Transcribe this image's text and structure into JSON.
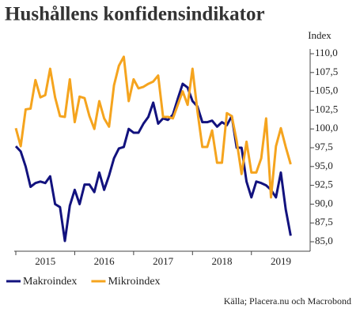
{
  "chart_data": {
    "type": "line",
    "title": "Hushållens konfidensindikator",
    "y_label": "Index",
    "source": "Källa; Placera.nu och Macrobond",
    "x": [
      2015,
      2015.083,
      2015.167,
      2015.25,
      2015.333,
      2015.417,
      2015.5,
      2015.583,
      2015.667,
      2015.75,
      2015.833,
      2015.917,
      2016,
      2016.083,
      2016.167,
      2016.25,
      2016.333,
      2016.417,
      2016.5,
      2016.583,
      2016.667,
      2016.75,
      2016.833,
      2016.917,
      2017,
      2017.083,
      2017.167,
      2017.25,
      2017.333,
      2017.417,
      2017.5,
      2017.583,
      2017.667,
      2017.75,
      2017.833,
      2017.917,
      2018,
      2018.083,
      2018.167,
      2018.25,
      2018.333,
      2018.417,
      2018.5,
      2018.583,
      2018.667,
      2018.75,
      2018.833,
      2018.917,
      2019,
      2019.083,
      2019.167,
      2019.25,
      2019.333,
      2019.417,
      2019.5,
      2019.583,
      2019.667
    ],
    "series": [
      {
        "name": "Makroindex",
        "color": "#12127e",
        "values": [
          97.7,
          97,
          95,
          92.3,
          92.8,
          93,
          92.8,
          93.7,
          90,
          89.6,
          85.1,
          89.8,
          91.9,
          90,
          92.6,
          92.6,
          91.6,
          94.2,
          91.9,
          93.8,
          96.1,
          97.4,
          97.6,
          100,
          99.5,
          99.5,
          100.7,
          101.6,
          103.5,
          100.7,
          101.4,
          101.2,
          101.9,
          104,
          106,
          105.5,
          103.7,
          103,
          100.9,
          100.9,
          101.1,
          100.3,
          100.9,
          100.5,
          101.7,
          97.5,
          97.5,
          93,
          90.9,
          93,
          92.8,
          92.5,
          91.9,
          90.9,
          94.2,
          89.3,
          85.8
        ]
      },
      {
        "name": "Mikroindex",
        "color": "#f5a41e",
        "values": [
          100.1,
          97.7,
          102.6,
          102.7,
          106.5,
          104.2,
          104.5,
          108,
          104.2,
          101.7,
          101.6,
          106.6,
          100.9,
          104.3,
          104.1,
          101.7,
          100,
          103.7,
          101.4,
          100.3,
          105.8,
          108.4,
          109.6,
          103.7,
          106.6,
          105.4,
          105.6,
          106,
          106.3,
          107.1,
          101.6,
          101.6,
          101.4,
          103.2,
          105,
          103.2,
          108,
          102.4,
          97.6,
          97.6,
          99.8,
          95.5,
          95.5,
          102.1,
          101.7,
          98.4,
          94,
          98.3,
          94.2,
          94.2,
          96.1,
          101.4,
          90.9,
          97.7,
          100.1,
          97.6,
          95.3
        ]
      }
    ],
    "xlim": [
      2015,
      2019.917
    ],
    "xticks": [
      {
        "value": 2015.5,
        "label": "2015"
      },
      {
        "value": 2016.5,
        "label": "2016"
      },
      {
        "value": 2017.5,
        "label": "2017"
      },
      {
        "value": 2018.5,
        "label": "2018"
      },
      {
        "value": 2019.5,
        "label": "2019"
      }
    ],
    "ylim": [
      85,
      110
    ],
    "yticks": [
      {
        "value": 85,
        "label": "85,0"
      },
      {
        "value": 87.5,
        "label": "87,5"
      },
      {
        "value": 90,
        "label": "90,0"
      },
      {
        "value": 92.5,
        "label": "92,5"
      },
      {
        "value": 95,
        "label": "95,0"
      },
      {
        "value": 97.5,
        "label": "97,5"
      },
      {
        "value": 100,
        "label": "100,0"
      },
      {
        "value": 102.5,
        "label": "102,5"
      },
      {
        "value": 105,
        "label": "105,0"
      },
      {
        "value": 107.5,
        "label": "107,5"
      },
      {
        "value": 110,
        "label": "110,0"
      }
    ],
    "grid": false,
    "legend": "bottom-left"
  }
}
